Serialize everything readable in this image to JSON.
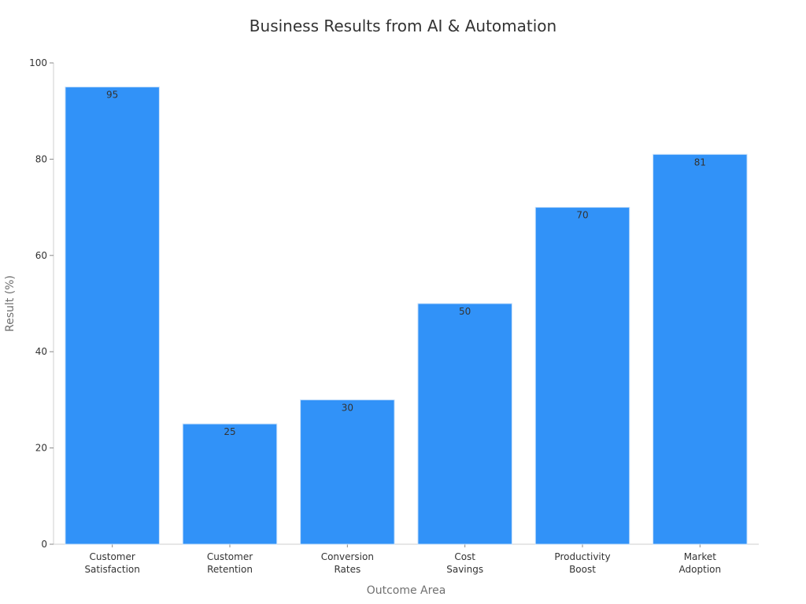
{
  "chart_data": {
    "type": "bar",
    "title": "Business Results from AI & Automation",
    "xlabel": "Outcome Area",
    "ylabel": "Result (%)",
    "ylim": [
      0,
      100
    ],
    "yticks": [
      0,
      20,
      40,
      60,
      80,
      100
    ],
    "categories": [
      [
        "Customer",
        "Satisfaction"
      ],
      [
        "Customer",
        "Retention"
      ],
      [
        "Conversion",
        "Rates"
      ],
      [
        "Cost",
        "Savings"
      ],
      [
        "Productivity",
        "Boost"
      ],
      [
        "Market",
        "Adoption"
      ]
    ],
    "values": [
      95,
      25,
      30,
      50,
      70,
      81
    ],
    "data_labels": [
      "95",
      "25",
      "30",
      "50",
      "70",
      "81"
    ],
    "bar_color": "#3192f8",
    "grid": false,
    "legend": "none"
  }
}
